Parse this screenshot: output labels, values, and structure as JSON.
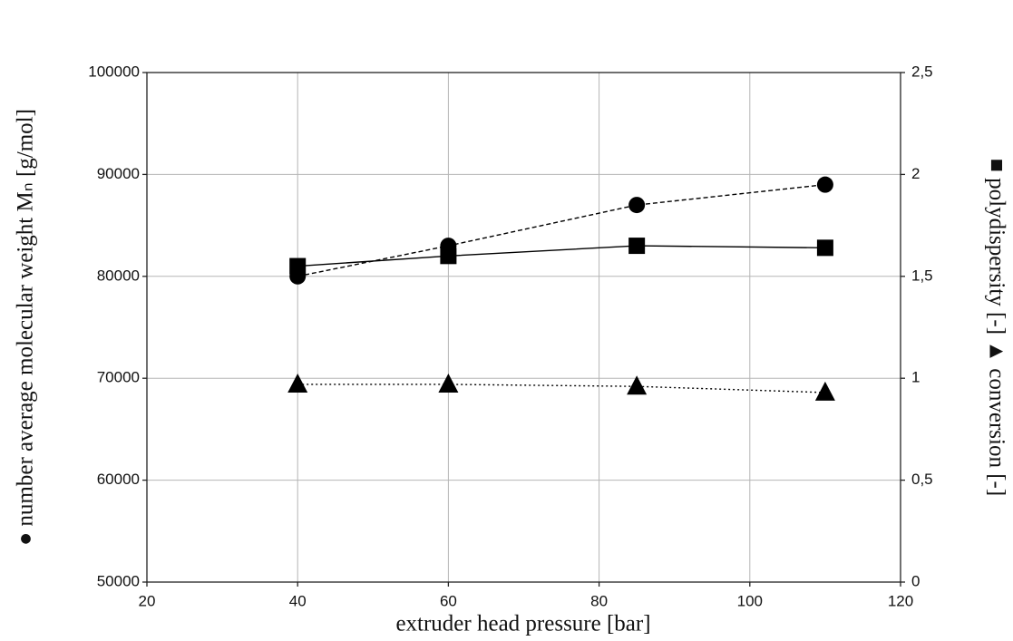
{
  "chart_data": {
    "type": "line",
    "x_label": "extruder head pressure [bar]",
    "y_label": "● number average molecular weight Mₙ [g/mol]",
    "y2_label": "■ polydispersity [-] ▲ conversion [-]",
    "x": [
      40,
      60,
      85,
      110
    ],
    "series": [
      {
        "marker": "circle",
        "dash": "5,3",
        "color": "#000000",
        "values": [
          80000,
          83000,
          87000,
          89000
        ]
      },
      {
        "marker": "square",
        "dash": "none",
        "color": "#000000",
        "axis": "y2",
        "values": [
          1.55,
          1.6,
          1.65,
          1.64
        ]
      },
      {
        "marker": "triangle",
        "dash": "2,3",
        "color": "#000000",
        "axis": "y2",
        "values": [
          0.97,
          0.97,
          0.96,
          0.93
        ]
      }
    ],
    "xlim": [
      20,
      120
    ],
    "xticks": [
      20,
      40,
      60,
      80,
      100,
      120
    ],
    "ylim": [
      50000,
      100000
    ],
    "yticks": [
      50000,
      60000,
      70000,
      80000,
      90000,
      100000
    ],
    "y2lim": [
      0,
      2.5
    ],
    "y2ticks": [
      0,
      {
        "value": 0.5,
        "label": "0,5"
      },
      1,
      {
        "value": 1.5,
        "label": "1,5"
      },
      2,
      {
        "value": 2.5,
        "label": "2,5"
      }
    ],
    "grid": true
  }
}
